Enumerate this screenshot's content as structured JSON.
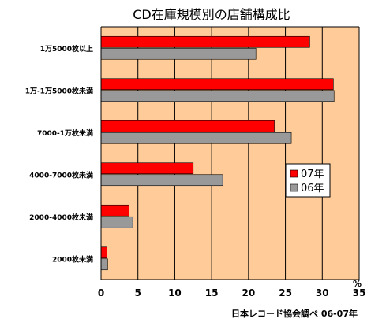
{
  "chart_data": {
    "type": "bar",
    "orientation": "horizontal",
    "title": "CD在庫規模別の店舗構成比",
    "unit_label": "%",
    "source_note": "日本レコード協会調べ 06-07年",
    "categories": [
      "1万5000枚以上",
      "1万-1万5000枚未満",
      "7000-1万枚未満",
      "4000-7000枚未満",
      "2000-4000枚未満",
      "2000枚未満"
    ],
    "series": [
      {
        "name": "07年",
        "color": "#ff0000",
        "values": [
          28.3,
          31.5,
          23.5,
          12.5,
          3.8,
          0.8
        ]
      },
      {
        "name": "06年",
        "color": "#999999",
        "values": [
          21.0,
          31.6,
          25.8,
          16.5,
          4.3,
          0.9
        ]
      }
    ],
    "xlim": [
      0,
      35
    ],
    "xticks": [
      0,
      5,
      10,
      15,
      20,
      25,
      30,
      35
    ],
    "grid": true,
    "legend_position": "right-middle",
    "plot_background": "#ffcc99"
  }
}
